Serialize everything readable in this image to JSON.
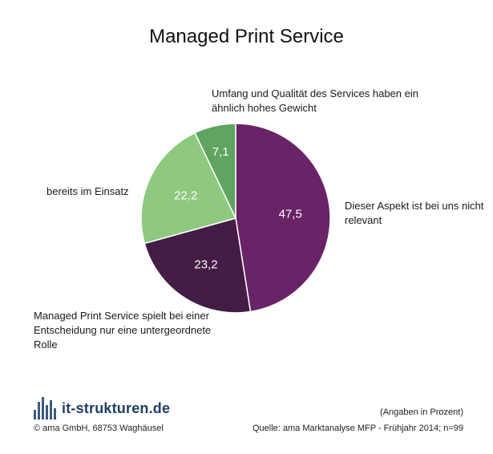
{
  "chart_data": {
    "type": "pie",
    "title": "Managed Print Service",
    "unit_note": "(Angaben in Prozent)",
    "source": "Quelle: ama Marktanalyse MFP - Frühjahr 2014;  n=99",
    "slices": [
      {
        "value": 47.5,
        "label": "47,5",
        "category": "Dieser Aspekt ist bei uns nicht relevant",
        "color": "#6a2366"
      },
      {
        "value": 23.2,
        "label": "23,2",
        "category": "Managed Print Service spielt bei einer Entscheidung nur eine untergeordnete Rolle",
        "color": "#431d45"
      },
      {
        "value": 22.2,
        "label": "22,2",
        "category": "bereits im Einsatz",
        "color": "#8ec97f"
      },
      {
        "value": 7.1,
        "label": "7,1",
        "category": "Umfang und Qualität des Services haben ein ähnlich hohes Gewicht",
        "color": "#5fa45f"
      }
    ]
  },
  "footer": {
    "logo_text": "it-strukturen.de",
    "copyright": "© ama GmbH, 68753 Waghäusel"
  }
}
